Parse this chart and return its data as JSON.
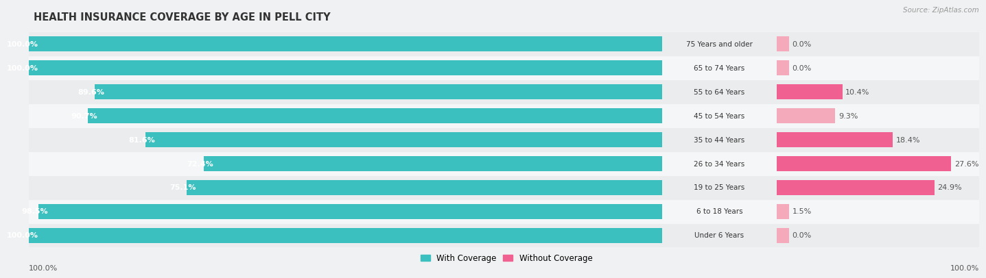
{
  "title": "HEALTH INSURANCE COVERAGE BY AGE IN PELL CITY",
  "source": "Source: ZipAtlas.com",
  "categories": [
    "Under 6 Years",
    "6 to 18 Years",
    "19 to 25 Years",
    "26 to 34 Years",
    "35 to 44 Years",
    "45 to 54 Years",
    "55 to 64 Years",
    "65 to 74 Years",
    "75 Years and older"
  ],
  "with_coverage": [
    100.0,
    98.5,
    75.1,
    72.4,
    81.6,
    90.7,
    89.6,
    100.0,
    100.0
  ],
  "without_coverage": [
    0.0,
    1.5,
    24.9,
    27.6,
    18.4,
    9.3,
    10.4,
    0.0,
    0.0
  ],
  "color_with": "#3BBFBF",
  "color_without_dark": "#F06090",
  "color_without_light": "#F4AABB",
  "bg_row_even": "#EAECEE",
  "bg_row_odd": "#F5F6F7",
  "bar_height": 0.62,
  "title_fontsize": 10.5,
  "label_fontsize": 8.0,
  "tick_fontsize": 8.0,
  "legend_fontsize": 8.5,
  "source_fontsize": 7.5
}
